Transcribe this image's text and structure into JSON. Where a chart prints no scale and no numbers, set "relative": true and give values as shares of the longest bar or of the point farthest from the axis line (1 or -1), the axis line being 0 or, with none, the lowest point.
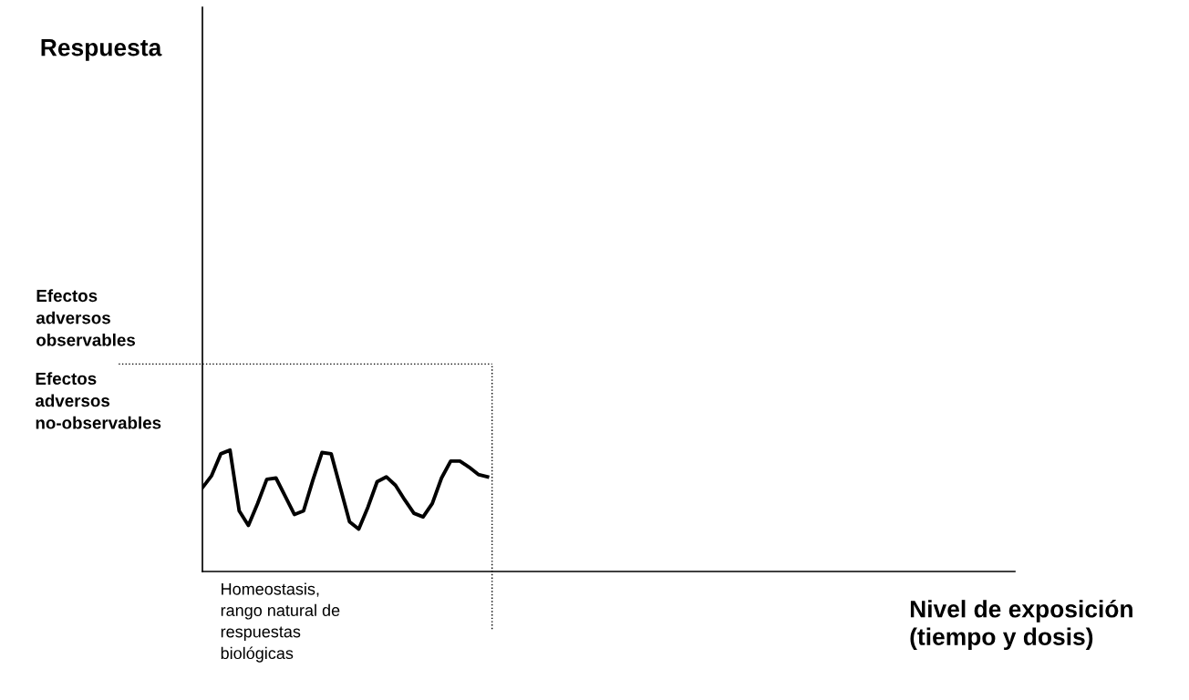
{
  "chart_data": {
    "type": "line",
    "relative": true,
    "categories": [
      null,
      null,
      null,
      null,
      null,
      null,
      null,
      null,
      null,
      null,
      null,
      null,
      null,
      null,
      null,
      null,
      null,
      null,
      null,
      null,
      null,
      null,
      null,
      null,
      null,
      null,
      null,
      null,
      null,
      null,
      null,
      null
    ],
    "legend": false,
    "marker": "none",
    "line_style": "solid",
    "series": [
      {
        "color": "#000000",
        "values": [
          0.69,
          0.79,
          0.97,
          1.0,
          0.5,
          0.38,
          0.56,
          0.76,
          0.77,
          0.62,
          0.47,
          0.5,
          0.75,
          0.98,
          0.97,
          0.69,
          0.41,
          0.35,
          0.53,
          0.74,
          0.78,
          0.71,
          0.59,
          0.48,
          0.45,
          0.56,
          0.77,
          0.91,
          0.91,
          0.86,
          0.8,
          0.78
        ]
      }
    ],
    "ref_lines": [
      {
        "axis": "y",
        "value": 1.71,
        "label": "Efectos\nadversos\nobservables",
        "color": "#000000",
        "line_style": "dotted"
      }
    ],
    "annotations": [
      "Respuesta",
      "Efectos\nadversos\nno-observables",
      "Homeostasis,\nrango natural de\nrespuestas\nbiológicas",
      "Nivel de exposición\n(tiempo y dosis)"
    ]
  }
}
